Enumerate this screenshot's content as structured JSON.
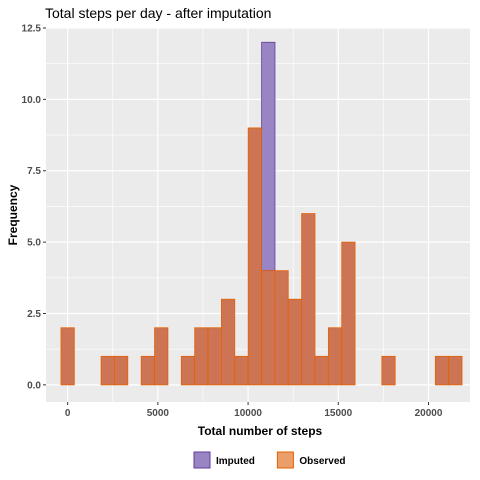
{
  "chart_data": {
    "type": "bar",
    "title": "Total steps per day - after imputation",
    "xlabel": "Total number of steps",
    "ylabel": "Frequency",
    "xlim": [
      -1200,
      22300
    ],
    "ylim": [
      -0.6,
      12.5
    ],
    "x_ticks": [
      {
        "value": 0,
        "label": "0"
      },
      {
        "value": 5000,
        "label": "5000"
      },
      {
        "value": 10000,
        "label": "10000"
      },
      {
        "value": 15000,
        "label": "15000"
      },
      {
        "value": 20000,
        "label": "20000"
      }
    ],
    "y_ticks": [
      {
        "value": 0,
        "label": "0.0"
      },
      {
        "value": 2.5,
        "label": "2.5"
      },
      {
        "value": 5,
        "label": "5.0"
      },
      {
        "value": 7.5,
        "label": "7.5"
      },
      {
        "value": 10,
        "label": "10.0"
      },
      {
        "value": 12.5,
        "label": "12.5"
      }
    ],
    "grid": true,
    "bin_width": 740,
    "series": [
      {
        "name": "Imputed",
        "color": "#9a85c4",
        "stroke": "#5e3c99",
        "bins": [
          {
            "x": 11120,
            "count": 8
          }
        ],
        "stack_base": [
          {
            "x": 11120,
            "base": 4
          }
        ]
      },
      {
        "name": "Observed",
        "color": "#cc7454",
        "stroke": "#e66101",
        "bins": [
          {
            "x": 0,
            "count": 2
          },
          {
            "x": 741,
            "count": 0
          },
          {
            "x": 1482,
            "count": 0
          },
          {
            "x": 2223,
            "count": 1
          },
          {
            "x": 2964,
            "count": 1
          },
          {
            "x": 3705,
            "count": 0
          },
          {
            "x": 4446,
            "count": 1
          },
          {
            "x": 5187,
            "count": 2
          },
          {
            "x": 5928,
            "count": 0
          },
          {
            "x": 6669,
            "count": 1
          },
          {
            "x": 7410,
            "count": 2
          },
          {
            "x": 8151,
            "count": 2
          },
          {
            "x": 8892,
            "count": 3
          },
          {
            "x": 9633,
            "count": 1
          },
          {
            "x": 10374,
            "count": 9
          },
          {
            "x": 11115,
            "count": 4
          },
          {
            "x": 11856,
            "count": 4
          },
          {
            "x": 12597,
            "count": 3
          },
          {
            "x": 13338,
            "count": 6
          },
          {
            "x": 14079,
            "count": 1
          },
          {
            "x": 14820,
            "count": 2
          },
          {
            "x": 15561,
            "count": 5
          },
          {
            "x": 16302,
            "count": 0
          },
          {
            "x": 17043,
            "count": 0
          },
          {
            "x": 17784,
            "count": 1
          },
          {
            "x": 18525,
            "count": 0
          },
          {
            "x": 19266,
            "count": 0
          },
          {
            "x": 20007,
            "count": 0
          },
          {
            "x": 20748,
            "count": 1
          },
          {
            "x": 21489,
            "count": 1
          }
        ]
      }
    ],
    "legend": {
      "position": "bottom",
      "items": [
        {
          "label": "Imputed",
          "color": "#9a85c4",
          "stroke": "#5e3c99"
        },
        {
          "label": "Observed",
          "color": "#ea9f6a",
          "stroke": "#e66101"
        }
      ]
    },
    "panel_color": "#ebebeb",
    "grid_color": "#ffffff"
  }
}
